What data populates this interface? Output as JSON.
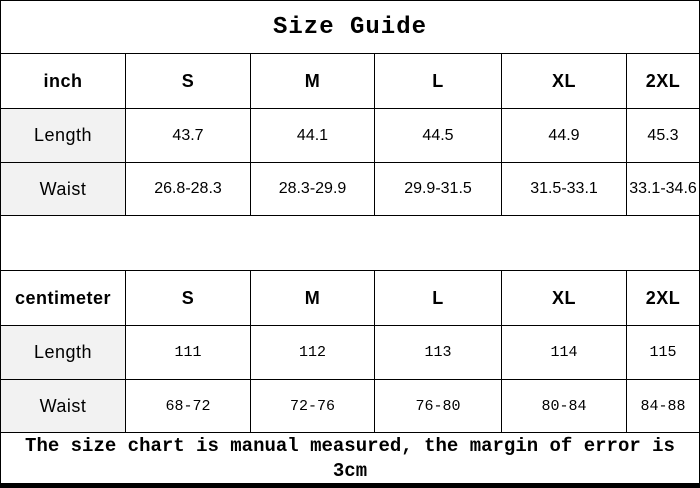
{
  "title": "Size Guide",
  "tables": [
    {
      "unit": "inch",
      "sizes": [
        "S",
        "M",
        "L",
        "XL",
        "2XL"
      ],
      "rows": [
        {
          "label": "Length",
          "values": [
            "43.7",
            "44.1",
            "44.5",
            "44.9",
            "45.3"
          ]
        },
        {
          "label": "Waist",
          "values": [
            "26.8-28.3",
            "28.3-29.9",
            "29.9-31.5",
            "31.5-33.1",
            "33.1-34.6"
          ]
        }
      ]
    },
    {
      "unit": "centimeter",
      "sizes": [
        "S",
        "M",
        "L",
        "XL",
        "2XL"
      ],
      "rows": [
        {
          "label": "Length",
          "values": [
            "111",
            "112",
            "113",
            "114",
            "115"
          ]
        },
        {
          "label": "Waist",
          "values": [
            "68-72",
            "72-76",
            "76-80",
            "80-84",
            "84-88"
          ]
        }
      ]
    }
  ],
  "footer_note": "The size chart is manual measured, the margin of error is 3cm",
  "colors": {
    "border": "#000000",
    "label_cell_background": "#f2f2f2",
    "background": "#ffffff",
    "text": "#000000"
  }
}
